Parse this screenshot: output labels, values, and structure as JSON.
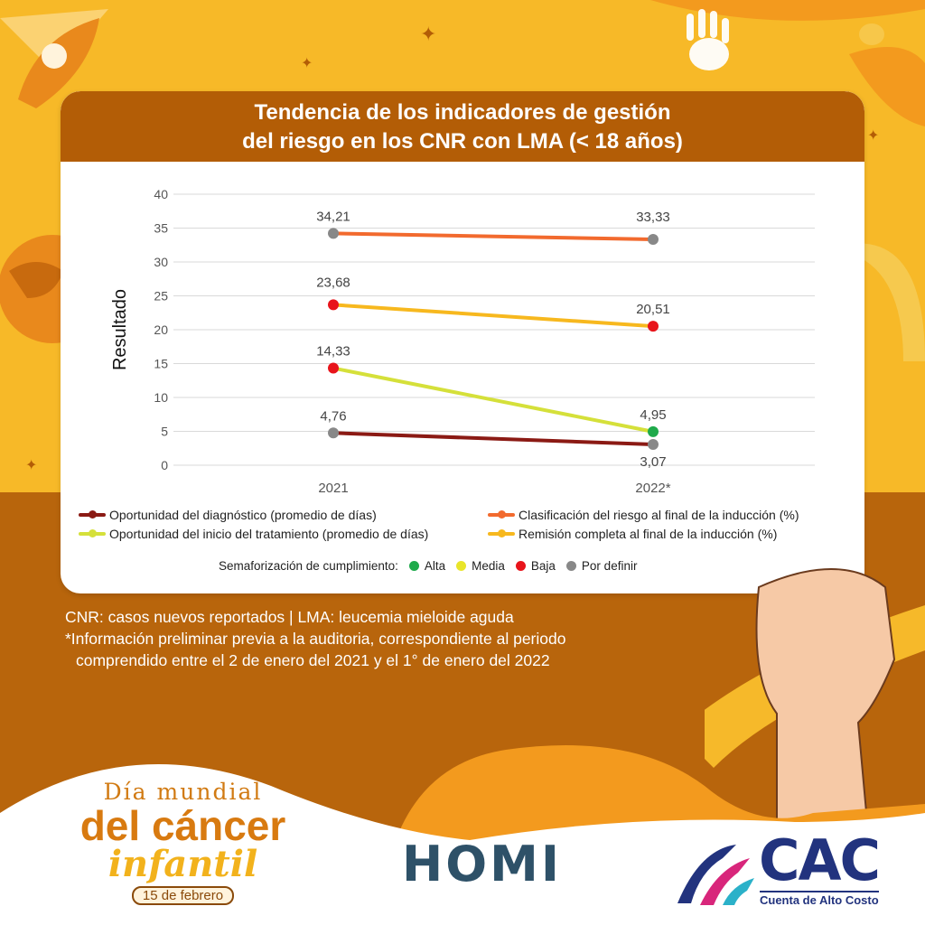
{
  "title_line1": "Tendencia de los indicadores de gestión",
  "title_line2": "del riesgo en los CNR con LMA (< 18 años)",
  "chart_data": {
    "type": "line",
    "x": [
      "2021",
      "2022*"
    ],
    "ylabel": "Resultado",
    "ylim": [
      0,
      40
    ],
    "yticks": [
      0,
      5,
      10,
      15,
      20,
      25,
      30,
      35,
      40
    ],
    "grid": true,
    "series": [
      {
        "name": "Oportunidad del diagnóstico (promedio de días)",
        "color": "#8b1a14",
        "values": [
          4.76,
          3.07
        ],
        "labels": [
          "4,76",
          "3,07"
        ],
        "point_colors": [
          "#888888",
          "#888888"
        ]
      },
      {
        "name": "Oportunidad del inicio del tratamiento (promedio de días)",
        "color": "#d5e03a",
        "values": [
          14.33,
          4.95
        ],
        "labels": [
          "14,33",
          "4,95"
        ],
        "point_colors": [
          "#e8141b",
          "#1faa4b"
        ]
      },
      {
        "name": "Clasificación del riesgo al final de la inducción (%)",
        "color": "#f26a2e",
        "values": [
          34.21,
          33.33
        ],
        "labels": [
          "34,21",
          "33,33"
        ],
        "point_colors": [
          "#888888",
          "#888888"
        ]
      },
      {
        "name": "Remisión completa al final de la inducción (%)",
        "color": "#f7b81e",
        "values": [
          23.68,
          20.51
        ],
        "labels": [
          "23,68",
          "20,51"
        ],
        "point_colors": [
          "#e8141b",
          "#e8141b"
        ]
      }
    ]
  },
  "semaforizacion": {
    "label": "Semaforización de cumplimiento:",
    "items": [
      {
        "label": "Alta",
        "color": "#1faa4b"
      },
      {
        "label": "Media",
        "color": "#e9e52a"
      },
      {
        "label": "Baja",
        "color": "#e8141b"
      },
      {
        "label": "Por definir",
        "color": "#888888"
      }
    ]
  },
  "notes": {
    "abbrev": "CNR: casos nuevos reportados  |  LMA: leucemia mieloide aguda",
    "footnote1": "*Información preliminar previa a la auditoria, correspondiente al periodo",
    "footnote2": "comprendido entre el 2 de enero del 2021 y el 1° de enero del 2022"
  },
  "campaign": {
    "line1": "Día mundial",
    "line2": "del cáncer",
    "line3": "infantil",
    "date": "15 de febrero"
  },
  "logos": {
    "homi": "HOMI",
    "cac": "CAC",
    "cac_sub": "Cuenta de Alto Costo"
  }
}
